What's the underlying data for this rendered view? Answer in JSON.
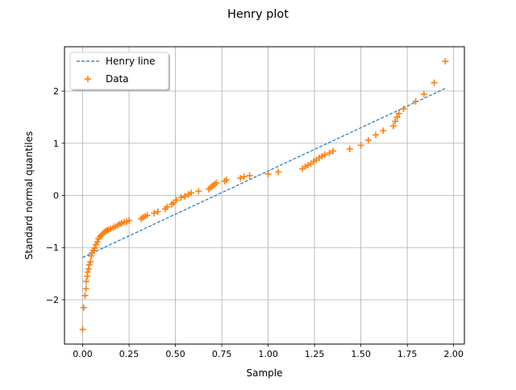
{
  "chart_data": {
    "type": "scatter",
    "title": "Henry plot",
    "xlabel": "Sample",
    "ylabel": "Standard normal quantiles",
    "xlim": [
      -0.098,
      2.058
    ],
    "ylim": [
      -2.85,
      2.85
    ],
    "x_ticks": [
      0.0,
      0.25,
      0.5,
      0.75,
      1.0,
      1.25,
      1.5,
      1.75,
      2.0
    ],
    "x_tick_labels": [
      "0.00",
      "0.25",
      "0.50",
      "0.75",
      "1.00",
      "1.25",
      "1.50",
      "1.75",
      "2.00"
    ],
    "y_ticks": [
      -2,
      -1,
      0,
      1,
      2
    ],
    "y_tick_labels": [
      "−2",
      "−1",
      "0",
      "1",
      "2"
    ],
    "grid": true,
    "legend_position": "upper-left",
    "series": [
      {
        "name": "Henry line",
        "kind": "line",
        "style": "dashed",
        "color": "#1f77b4",
        "x": [
          0.0,
          1.96
        ],
        "y": [
          -1.19,
          2.06
        ]
      },
      {
        "name": "Data",
        "kind": "scatter",
        "marker": "+",
        "color": "#ff7f0e",
        "x": [
          0.0,
          0.005,
          0.013,
          0.018,
          0.019,
          0.025,
          0.027,
          0.032,
          0.035,
          0.042,
          0.046,
          0.05,
          0.058,
          0.064,
          0.072,
          0.079,
          0.085,
          0.093,
          0.102,
          0.108,
          0.115,
          0.123,
          0.131,
          0.14,
          0.15,
          0.165,
          0.175,
          0.19,
          0.2,
          0.21,
          0.224,
          0.237,
          0.25,
          0.315,
          0.325,
          0.337,
          0.348,
          0.385,
          0.405,
          0.445,
          0.455,
          0.48,
          0.49,
          0.505,
          0.53,
          0.55,
          0.57,
          0.585,
          0.625,
          0.68,
          0.69,
          0.7,
          0.71,
          0.72,
          0.765,
          0.775,
          0.85,
          0.87,
          0.9,
          1.0,
          1.055,
          1.185,
          1.2,
          1.215,
          1.23,
          1.245,
          1.26,
          1.275,
          1.29,
          1.305,
          1.33,
          1.35,
          1.44,
          1.5,
          1.54,
          1.58,
          1.62,
          1.675,
          1.685,
          1.695,
          1.705,
          1.73,
          1.795,
          1.84,
          1.895,
          1.955
        ],
        "y": [
          -2.57,
          -2.15,
          -1.92,
          -1.79,
          -1.65,
          -1.55,
          -1.47,
          -1.41,
          -1.33,
          -1.27,
          -1.16,
          -1.1,
          -1.06,
          -1.01,
          -0.94,
          -0.89,
          -0.83,
          -0.79,
          -0.76,
          -0.74,
          -0.71,
          -0.69,
          -0.67,
          -0.66,
          -0.64,
          -0.62,
          -0.6,
          -0.57,
          -0.55,
          -0.53,
          -0.51,
          -0.5,
          -0.48,
          -0.45,
          -0.42,
          -0.4,
          -0.38,
          -0.34,
          -0.31,
          -0.26,
          -0.22,
          -0.17,
          -0.14,
          -0.09,
          -0.04,
          -0.02,
          0.02,
          0.05,
          0.08,
          0.12,
          0.15,
          0.18,
          0.21,
          0.24,
          0.27,
          0.3,
          0.33,
          0.36,
          0.38,
          0.41,
          0.45,
          0.51,
          0.55,
          0.58,
          0.61,
          0.65,
          0.68,
          0.72,
          0.75,
          0.78,
          0.81,
          0.85,
          0.89,
          0.96,
          1.06,
          1.16,
          1.24,
          1.33,
          1.42,
          1.5,
          1.57,
          1.66,
          1.8,
          1.94,
          2.16,
          2.57
        ]
      }
    ]
  }
}
